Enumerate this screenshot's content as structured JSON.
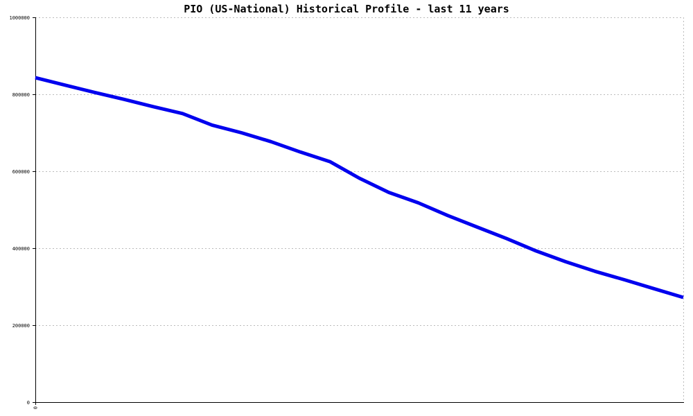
{
  "chart_data": {
    "type": "line",
    "title": "PIO (US-National) Historical Profile - last 11 years",
    "xlabel": "",
    "ylabel": "",
    "ylim": [
      0,
      1000000
    ],
    "yticks": [
      0,
      200000,
      400000,
      600000,
      800000,
      1000000
    ],
    "ytick_labels": [
      "0",
      "200000",
      "400000",
      "600000",
      "800000",
      "1000000"
    ],
    "xticks": [
      0
    ],
    "xtick_labels": [
      "0"
    ],
    "xlim": [
      0,
      132
    ],
    "grid": true,
    "colors": {
      "series": "#0000ee",
      "grid": "#bbbbbb",
      "axis": "#000000"
    },
    "series": [
      {
        "x": [
          0,
          6,
          12,
          18,
          24,
          30,
          36,
          42,
          48,
          54,
          60,
          66,
          72,
          78,
          84,
          90,
          96,
          102,
          108,
          114,
          120,
          126,
          132
        ],
        "values": [
          843000,
          824000,
          805000,
          787000,
          768000,
          750000,
          720000,
          700000,
          677000,
          650000,
          625000,
          582000,
          545000,
          518000,
          485000,
          455000,
          425000,
          393000,
          365000,
          340000,
          318000,
          295000,
          272000
        ]
      }
    ]
  }
}
